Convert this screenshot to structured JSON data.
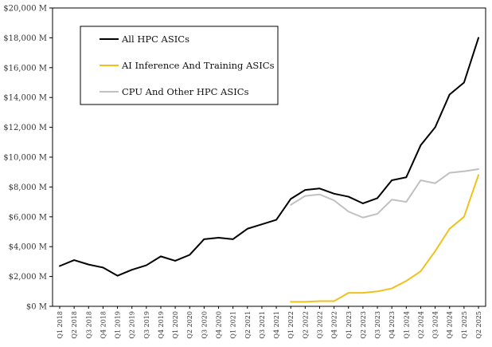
{
  "chart_data": {
    "type": "line",
    "title": "",
    "xlabel": "",
    "ylabel": "",
    "ylim": [
      0,
      20000
    ],
    "yticks": [
      {
        "value": 0,
        "label": "$0 M"
      },
      {
        "value": 2000,
        "label": "$2,000 M"
      },
      {
        "value": 4000,
        "label": "$4,000 M"
      },
      {
        "value": 6000,
        "label": "$6,000 M"
      },
      {
        "value": 8000,
        "label": "$8,000 M"
      },
      {
        "value": 10000,
        "label": "$10,000 M"
      },
      {
        "value": 12000,
        "label": "$12,000 M"
      },
      {
        "value": 14000,
        "label": "$14,000 M"
      },
      {
        "value": 16000,
        "label": "$16,000 M"
      },
      {
        "value": 18000,
        "label": "$18,000 M"
      },
      {
        "value": 20000,
        "label": "$20,000 M"
      }
    ],
    "grid": false,
    "legend_position": "top-left",
    "categories": [
      "Q1 2018",
      "Q2 2018",
      "Q3 2018",
      "Q4 2018",
      "Q1 2019",
      "Q2 2019",
      "Q3 2019",
      "Q4 2019",
      "Q1 2020",
      "Q2 2020",
      "Q3 2020",
      "Q4 2020",
      "Q1 2021",
      "Q2 2021",
      "Q3 2021",
      "Q4 2021",
      "Q1 2022",
      "Q2 2022",
      "Q3 2022",
      "Q4 2022",
      "Q1 2023",
      "Q2 2023",
      "Q3 2023",
      "Q4 2023",
      "Q1 2024",
      "Q2 2024",
      "Q3 2024",
      "Q4 2024",
      "Q1 2025",
      "Q2 2025"
    ],
    "series": [
      {
        "name": "All HPC ASICs",
        "color": "#000000",
        "values": [
          2700,
          3100,
          2800,
          2600,
          2050,
          2450,
          2750,
          3350,
          3050,
          3450,
          4500,
          4600,
          4500,
          5200,
          5500,
          5800,
          7200,
          7800,
          7900,
          7550,
          7350,
          6900,
          7250,
          8450,
          8650,
          10800,
          12000,
          14200,
          15000,
          18000
        ]
      },
      {
        "name": "AI Inference And Training ASICs",
        "color": "#f2c01c",
        "values": [
          null,
          null,
          null,
          null,
          null,
          null,
          null,
          null,
          null,
          null,
          null,
          null,
          null,
          null,
          null,
          null,
          300,
          300,
          350,
          350,
          900,
          900,
          1000,
          1200,
          1700,
          2350,
          3700,
          5200,
          6000,
          8800
        ]
      },
      {
        "name": "CPU And Other HPC ASICs",
        "color": "#c0c0c0",
        "values": [
          null,
          null,
          null,
          null,
          null,
          null,
          null,
          null,
          null,
          null,
          null,
          null,
          null,
          null,
          null,
          null,
          6800,
          7400,
          7500,
          7100,
          6350,
          5950,
          6200,
          7150,
          7000,
          8450,
          8250,
          8950,
          9050,
          9200
        ]
      }
    ]
  }
}
